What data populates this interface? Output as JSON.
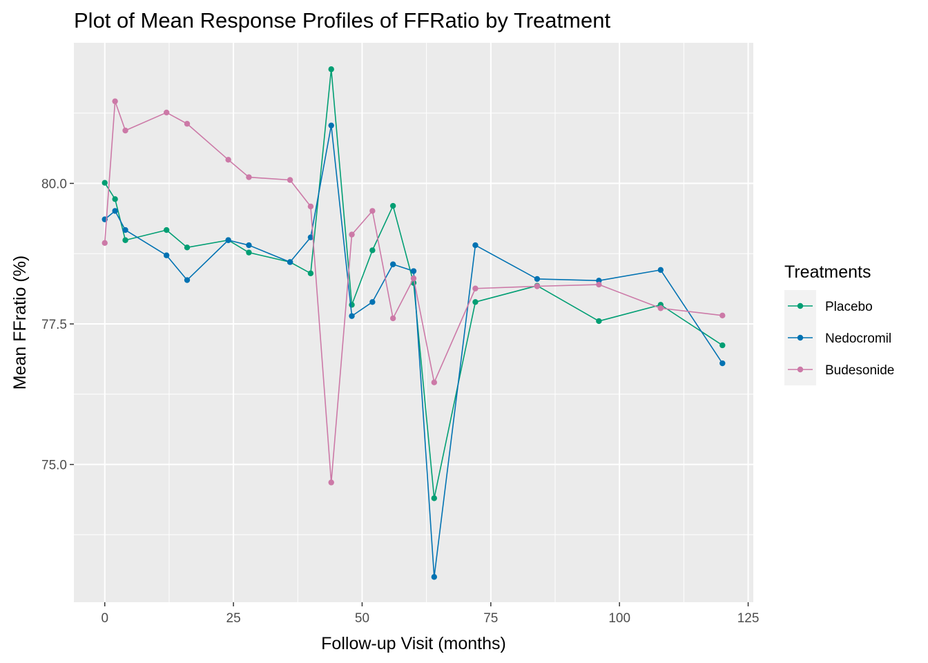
{
  "chart_data": {
    "type": "line",
    "title": "Plot of Mean Response Profiles of FFRatio by Treatment",
    "xlabel": "Follow-up Visit (months)",
    "ylabel": "Mean FFratio (%)",
    "xlim": [
      -6,
      126
    ],
    "ylim": [
      72.55,
      82.5
    ],
    "x_ticks": [
      0,
      25,
      50,
      75,
      100,
      125
    ],
    "x_tick_labels": [
      "0",
      "25",
      "50",
      "75",
      "100",
      "125"
    ],
    "y_ticks": [
      75.0,
      77.5,
      80.0
    ],
    "y_tick_labels": [
      "75.0",
      "77.5",
      "80.0"
    ],
    "grid": true,
    "legend": {
      "title": "Treatments",
      "placement": "right"
    },
    "background": "#ebebeb",
    "series": [
      {
        "name": "Placebo",
        "color": "#009e73",
        "x": [
          0,
          2,
          4,
          12,
          16,
          24,
          28,
          36,
          40,
          44,
          48,
          52,
          56,
          60,
          64,
          72,
          84,
          96,
          108,
          120
        ],
        "y": [
          80.01,
          79.72,
          78.99,
          79.17,
          78.86,
          78.99,
          78.77,
          78.6,
          78.4,
          82.03,
          77.84,
          78.81,
          79.6,
          78.23,
          74.4,
          77.89,
          78.18,
          77.55,
          77.84,
          77.12
        ]
      },
      {
        "name": "Nedocromil",
        "color": "#0072b2",
        "x": [
          0,
          2,
          4,
          12,
          16,
          24,
          28,
          36,
          40,
          44,
          48,
          52,
          56,
          60,
          64,
          72,
          84,
          96,
          108,
          120
        ],
        "y": [
          79.36,
          79.51,
          79.17,
          78.72,
          78.28,
          78.99,
          78.9,
          78.6,
          79.04,
          81.03,
          77.64,
          77.89,
          78.56,
          78.44,
          73.0,
          78.9,
          78.3,
          78.27,
          78.46,
          76.8
        ]
      },
      {
        "name": "Budesonide",
        "color": "#cc79a7",
        "x": [
          0,
          2,
          4,
          12,
          16,
          24,
          28,
          36,
          40,
          44,
          48,
          52,
          56,
          60,
          64,
          72,
          84,
          96,
          108,
          120
        ],
        "y": [
          78.94,
          81.46,
          80.94,
          81.26,
          81.06,
          80.42,
          80.11,
          80.06,
          79.59,
          74.68,
          79.09,
          79.51,
          77.6,
          78.31,
          76.46,
          78.13,
          78.17,
          78.2,
          77.78,
          77.65
        ]
      }
    ]
  }
}
